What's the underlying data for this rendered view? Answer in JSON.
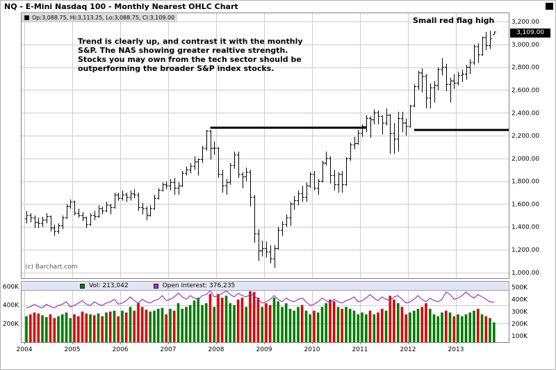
{
  "title": "NQ - E-Mini Nasdaq 100 - Monthly Nearest OHLC Chart",
  "price_legend_text": "Op:3,088.75, Hi:3,113.25, Lo:3,088.75, Cl:3,109.00",
  "annotations": {
    "flag": "Small red flag high",
    "commentary": "Trend is clearly up, and contrast it with the monthly\nS&P.  The NAS showing greater realtive strength.\nStocks you may own from the tech sector should be\noutperforming the broader S&P index stocks.",
    "watermark": "(c) Barchart.com",
    "last_price_tag": "3,109.00"
  },
  "volume_legend": {
    "vol_label": "Vol: 213,042",
    "oi_label": "Open Interest: 376,235"
  },
  "colors": {
    "bar": "#000000",
    "vol_up": "#007a00",
    "vol_down": "#dd0000",
    "oi_line": "#9933cc",
    "grid": "#cccccc",
    "trendline": "#000000",
    "border": "#808080",
    "outer_border": "#b0b0b0"
  },
  "chart_data": {
    "type": "ohlc",
    "period": "monthly",
    "start": "2004-01",
    "price_axis": {
      "ylim": [
        950,
        3280
      ],
      "ticks": [
        3200,
        3000,
        2800,
        2600,
        2400,
        2200,
        2000,
        1800,
        1600,
        1400,
        1200,
        1000
      ],
      "labels": [
        "3,200.00",
        "3,000.00",
        "2,800.00",
        "2,600.00",
        "2,400.00",
        "2,200.00",
        "2,000.00",
        "1,800.00",
        "1,600.00",
        "1,400.00",
        "1,200.00",
        "1,000.00"
      ]
    },
    "volume_axis": {
      "ylim": [
        0,
        660
      ],
      "ticks": [
        600,
        400,
        200
      ],
      "labels": [
        "600K",
        "400K",
        "200K"
      ]
    },
    "oi_axis": {
      "ylim": [
        50,
        550
      ],
      "ticks": [
        500,
        400,
        300,
        200,
        100
      ],
      "labels": [
        "500K",
        "400K",
        "300K",
        "200K",
        "100K"
      ]
    },
    "x_axis": {
      "year_labels": [
        "2004",
        "2005",
        "2006",
        "2007",
        "2008",
        "2009",
        "2010",
        "2011",
        "2012",
        "2013"
      ]
    },
    "trendlines": [
      {
        "start_index": 46,
        "end_index": 85,
        "price": 2270
      },
      {
        "start_index": 97,
        "end_index": 121,
        "price": 2250
      }
    ],
    "ohlc": [
      [
        1470,
        1540,
        1430,
        1500
      ],
      [
        1500,
        1520,
        1440,
        1480
      ],
      [
        1480,
        1500,
        1390,
        1440
      ],
      [
        1440,
        1480,
        1390,
        1430
      ],
      [
        1430,
        1490,
        1400,
        1460
      ],
      [
        1460,
        1520,
        1430,
        1490
      ],
      [
        1490,
        1500,
        1360,
        1390
      ],
      [
        1390,
        1420,
        1320,
        1360
      ],
      [
        1360,
        1430,
        1340,
        1410
      ],
      [
        1410,
        1500,
        1380,
        1480
      ],
      [
        1480,
        1600,
        1470,
        1580
      ],
      [
        1580,
        1640,
        1560,
        1620
      ],
      [
        1620,
        1630,
        1500,
        1520
      ],
      [
        1520,
        1560,
        1480,
        1500
      ],
      [
        1500,
        1530,
        1450,
        1480
      ],
      [
        1480,
        1490,
        1390,
        1420
      ],
      [
        1420,
        1520,
        1410,
        1500
      ],
      [
        1500,
        1540,
        1460,
        1490
      ],
      [
        1490,
        1590,
        1480,
        1560
      ],
      [
        1560,
        1580,
        1510,
        1540
      ],
      [
        1540,
        1620,
        1530,
        1590
      ],
      [
        1590,
        1600,
        1510,
        1570
      ],
      [
        1570,
        1700,
        1560,
        1680
      ],
      [
        1680,
        1700,
        1630,
        1650
      ],
      [
        1650,
        1720,
        1630,
        1680
      ],
      [
        1680,
        1700,
        1620,
        1660
      ],
      [
        1660,
        1720,
        1630,
        1690
      ],
      [
        1690,
        1730,
        1650,
        1680
      ],
      [
        1680,
        1700,
        1540,
        1570
      ],
      [
        1570,
        1610,
        1510,
        1560
      ],
      [
        1560,
        1580,
        1460,
        1500
      ],
      [
        1500,
        1590,
        1490,
        1560
      ],
      [
        1560,
        1680,
        1550,
        1650
      ],
      [
        1650,
        1740,
        1640,
        1720
      ],
      [
        1720,
        1790,
        1710,
        1770
      ],
      [
        1770,
        1800,
        1730,
        1760
      ],
      [
        1760,
        1820,
        1720,
        1790
      ],
      [
        1790,
        1830,
        1680,
        1740
      ],
      [
        1740,
        1790,
        1680,
        1760
      ],
      [
        1760,
        1890,
        1750,
        1870
      ],
      [
        1870,
        1930,
        1850,
        1900
      ],
      [
        1900,
        1960,
        1870,
        1930
      ],
      [
        1930,
        2020,
        1900,
        1970
      ],
      [
        1970,
        2000,
        1850,
        1990
      ],
      [
        1990,
        2110,
        1960,
        2090
      ],
      [
        2090,
        2250,
        2070,
        2240
      ],
      [
        2240,
        2250,
        1990,
        2090
      ],
      [
        2090,
        2150,
        2030,
        2090
      ],
      [
        2090,
        2100,
        1830,
        1860
      ],
      [
        1860,
        1900,
        1700,
        1760
      ],
      [
        1760,
        1820,
        1680,
        1790
      ],
      [
        1790,
        1960,
        1770,
        1940
      ],
      [
        1940,
        2060,
        1910,
        2030
      ],
      [
        2030,
        2060,
        1830,
        1860
      ],
      [
        1860,
        1880,
        1740,
        1840
      ],
      [
        1840,
        1920,
        1800,
        1880
      ],
      [
        1880,
        1900,
        1580,
        1660
      ],
      [
        1660,
        1680,
        1260,
        1340
      ],
      [
        1340,
        1380,
        1100,
        1190
      ],
      [
        1190,
        1280,
        1140,
        1210
      ],
      [
        1210,
        1270,
        1130,
        1180
      ],
      [
        1180,
        1240,
        1080,
        1120
      ],
      [
        1120,
        1240,
        1040,
        1210
      ],
      [
        1210,
        1400,
        1200,
        1370
      ],
      [
        1370,
        1450,
        1320,
        1420
      ],
      [
        1420,
        1510,
        1400,
        1480
      ],
      [
        1480,
        1620,
        1410,
        1600
      ],
      [
        1600,
        1670,
        1550,
        1630
      ],
      [
        1630,
        1720,
        1590,
        1690
      ],
      [
        1690,
        1760,
        1620,
        1660
      ],
      [
        1660,
        1790,
        1620,
        1760
      ],
      [
        1760,
        1880,
        1740,
        1860
      ],
      [
        1860,
        1890,
        1720,
        1740
      ],
      [
        1740,
        1820,
        1680,
        1800
      ],
      [
        1800,
        1980,
        1790,
        1960
      ],
      [
        1960,
        2060,
        1940,
        2000
      ],
      [
        2000,
        2020,
        1780,
        1850
      ],
      [
        1850,
        1900,
        1720,
        1770
      ],
      [
        1770,
        1880,
        1700,
        1860
      ],
      [
        1860,
        1890,
        1700,
        1770
      ],
      [
        1770,
        2010,
        1760,
        2000
      ],
      [
        2000,
        2140,
        1980,
        2120
      ],
      [
        2120,
        2190,
        2080,
        2130
      ],
      [
        2130,
        2250,
        2120,
        2220
      ],
      [
        2220,
        2300,
        2190,
        2280
      ],
      [
        2280,
        2380,
        2230,
        2350
      ],
      [
        2350,
        2370,
        2180,
        2340
      ],
      [
        2340,
        2430,
        2300,
        2400
      ],
      [
        2400,
        2420,
        2300,
        2370
      ],
      [
        2370,
        2380,
        2210,
        2310
      ],
      [
        2310,
        2440,
        2290,
        2380
      ],
      [
        2380,
        2390,
        2040,
        2220
      ],
      [
        2220,
        2310,
        2040,
        2170
      ],
      [
        2170,
        2410,
        2060,
        2350
      ],
      [
        2350,
        2410,
        2230,
        2310
      ],
      [
        2310,
        2350,
        2200,
        2280
      ],
      [
        2280,
        2470,
        2270,
        2460
      ],
      [
        2460,
        2650,
        2450,
        2630
      ],
      [
        2630,
        2770,
        2600,
        2750
      ],
      [
        2750,
        2790,
        2580,
        2720
      ],
      [
        2720,
        2740,
        2440,
        2530
      ],
      [
        2530,
        2660,
        2440,
        2620
      ],
      [
        2620,
        2680,
        2490,
        2640
      ],
      [
        2640,
        2800,
        2600,
        2780
      ],
      [
        2780,
        2880,
        2730,
        2800
      ],
      [
        2800,
        2830,
        2590,
        2650
      ],
      [
        2650,
        2710,
        2490,
        2680
      ],
      [
        2680,
        2740,
        2610,
        2660
      ],
      [
        2660,
        2760,
        2640,
        2730
      ],
      [
        2730,
        2780,
        2670,
        2740
      ],
      [
        2740,
        2820,
        2690,
        2800
      ],
      [
        2800,
        2870,
        2740,
        2840
      ],
      [
        2840,
        3000,
        2820,
        2980
      ],
      [
        2980,
        3010,
        2840,
        2910
      ],
      [
        2910,
        3070,
        2900,
        3060
      ],
      [
        3060,
        3110,
        2950,
        2990
      ],
      [
        2990,
        3120,
        2960,
        3050
      ],
      [
        3088.75,
        3113.25,
        3088.75,
        3109
      ]
    ],
    "volume_thousands": [
      280,
      300,
      320,
      310,
      290,
      270,
      300,
      260,
      280,
      300,
      320,
      260,
      300,
      280,
      330,
      310,
      300,
      290,
      310,
      280,
      320,
      330,
      340,
      280,
      340,
      320,
      380,
      340,
      420,
      380,
      350,
      330,
      340,
      360,
      370,
      300,
      360,
      340,
      420,
      360,
      380,
      400,
      450,
      480,
      400,
      420,
      520,
      380,
      520,
      480,
      500,
      420,
      400,
      460,
      480,
      380,
      550,
      540,
      480,
      380,
      420,
      400,
      480,
      440,
      380,
      420,
      360,
      340,
      380,
      400,
      340,
      300,
      340,
      320,
      380,
      420,
      460,
      440,
      380,
      360,
      380,
      360,
      340,
      300,
      320,
      300,
      340,
      300,
      320,
      360,
      340,
      500,
      460,
      420,
      380,
      300,
      320,
      340,
      360,
      380,
      420,
      360,
      300,
      280,
      320,
      340,
      320,
      280,
      300,
      280,
      300,
      320,
      340,
      360,
      300,
      280,
      260,
      213
    ],
    "open_interest_thousands": [
      330,
      340,
      360,
      340,
      330,
      360,
      340,
      330,
      350,
      360,
      380,
      340,
      350,
      370,
      390,
      360,
      350,
      380,
      360,
      350,
      370,
      380,
      400,
      360,
      370,
      390,
      420,
      390,
      370,
      400,
      380,
      370,
      390,
      400,
      430,
      390,
      400,
      420,
      450,
      420,
      400,
      430,
      410,
      400,
      430,
      440,
      470,
      420,
      430,
      450,
      470,
      440,
      420,
      450,
      430,
      420,
      440,
      430,
      400,
      370,
      380,
      400,
      430,
      400,
      380,
      410,
      390,
      380,
      400,
      410,
      380,
      350,
      360,
      380,
      410,
      390,
      370,
      400,
      380,
      370,
      390,
      400,
      420,
      380,
      390,
      410,
      440,
      410,
      390,
      420,
      400,
      390,
      420,
      430,
      400,
      370,
      380,
      400,
      430,
      400,
      380,
      410,
      390,
      380,
      400,
      460,
      440,
      400,
      410,
      430,
      460,
      430,
      410,
      440,
      420,
      400,
      380,
      376
    ]
  }
}
